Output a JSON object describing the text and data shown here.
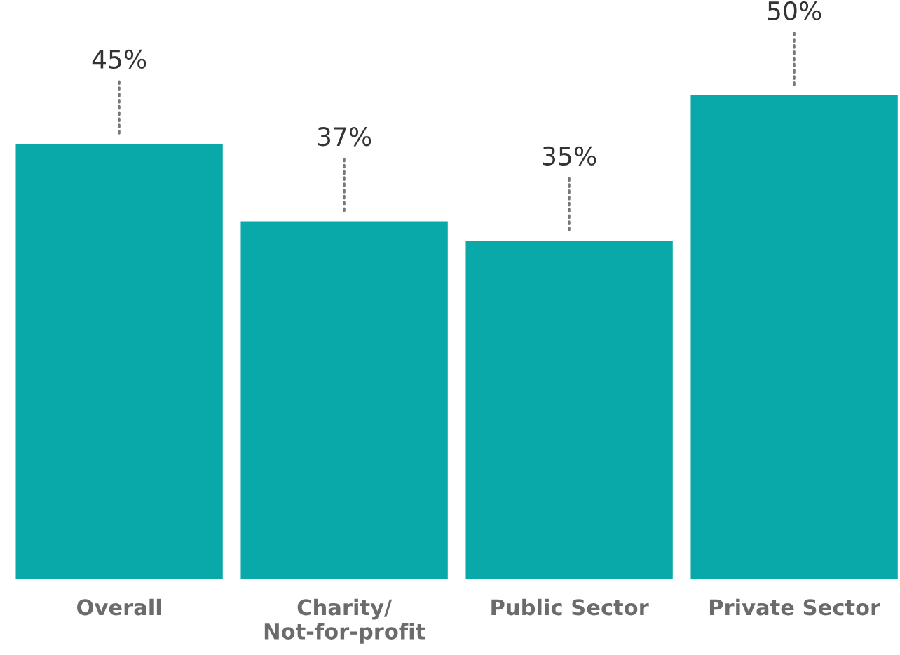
{
  "chart_data": {
    "type": "bar",
    "categories": [
      "Overall",
      "Charity/\nNot-for-profit",
      "Public Sector",
      "Private Sector"
    ],
    "values": [
      45,
      37,
      35,
      50
    ],
    "value_labels": [
      "45%",
      "37%",
      "35%",
      "50%"
    ],
    "color": "#0aa9a9",
    "grid": false
  }
}
